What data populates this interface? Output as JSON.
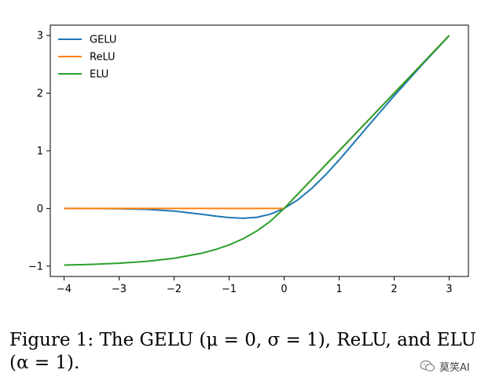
{
  "chart_data": {
    "type": "line",
    "title": "",
    "xlabel": "",
    "ylabel": "",
    "xlim": [
      -4.25,
      3.35
    ],
    "ylim": [
      -1.18,
      3.18
    ],
    "xticks": [
      -4,
      -3,
      -2,
      -1,
      0,
      1,
      2,
      3
    ],
    "yticks": [
      -1,
      0,
      1,
      2,
      3
    ],
    "xtick_labels": [
      "−4",
      "−3",
      "−2",
      "−1",
      "0",
      "1",
      "2",
      "3"
    ],
    "ytick_labels": [
      "−1",
      "0",
      "1",
      "2",
      "3"
    ],
    "grid": false,
    "legend_position": "upper-left",
    "x": [
      -4.0,
      -3.5,
      -3.0,
      -2.5,
      -2.0,
      -1.5,
      -1.25,
      -1.0,
      -0.75,
      -0.5,
      -0.25,
      0.0,
      0.25,
      0.5,
      0.75,
      1.0,
      1.25,
      1.5,
      2.0,
      2.5,
      3.0
    ],
    "series": [
      {
        "name": "GELU",
        "color": "#1f77b4",
        "values": [
          -0.0001,
          -0.0008,
          -0.004,
          -0.0155,
          -0.0455,
          -0.1002,
          -0.132,
          -0.1587,
          -0.1699,
          -0.1543,
          -0.0997,
          0.0,
          0.1497,
          0.3457,
          0.5801,
          0.8413,
          1.118,
          1.3998,
          1.9545,
          2.4845,
          2.996
        ]
      },
      {
        "name": "ReLU",
        "color": "#ff7f0e",
        "values": [
          0,
          0,
          0,
          0,
          0,
          0,
          0,
          0,
          0,
          0,
          0,
          0,
          0.25,
          0.5,
          0.75,
          1.0,
          1.25,
          1.5,
          2.0,
          2.5,
          3.0
        ]
      },
      {
        "name": "ELU",
        "color": "#2ca02c",
        "values": [
          -0.9817,
          -0.9698,
          -0.9502,
          -0.9179,
          -0.8647,
          -0.7769,
          -0.7135,
          -0.6321,
          -0.5276,
          -0.3935,
          -0.2212,
          0.0,
          0.25,
          0.5,
          0.75,
          1.0,
          1.25,
          1.5,
          2.0,
          2.5,
          3.0
        ]
      }
    ]
  },
  "caption": {
    "line1": "Figure 1:  The GELU (μ = 0, σ = 1), ReLU, and ELU",
    "line2": "(α = 1)."
  },
  "watermark": {
    "text": "莫笑AI",
    "icon": "wechat-icon"
  }
}
